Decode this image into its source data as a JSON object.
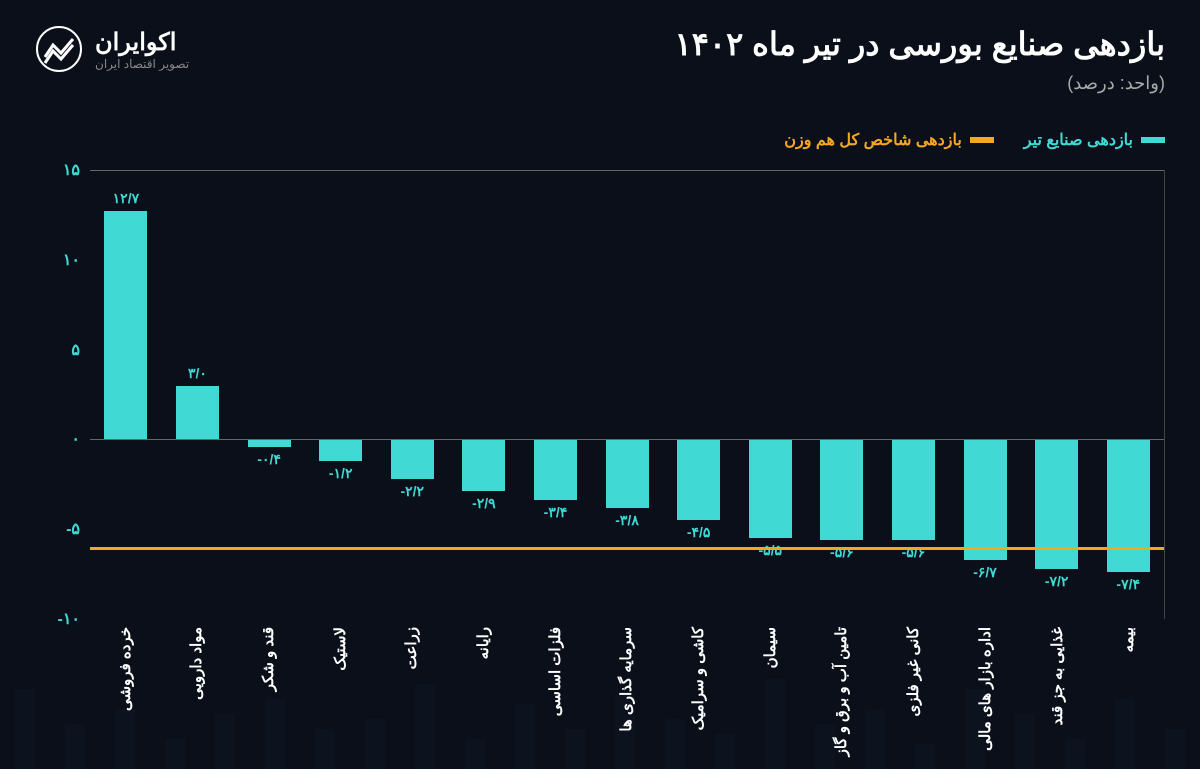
{
  "header": {
    "title": "بازدهی صنایع بورسی در تیر ماه ۱۴۰۲",
    "subtitle": "(واحد: درصد)",
    "brand": "اکوایران",
    "tagline": "تصویر اقتصاد ایران"
  },
  "legend": {
    "series": "بازدهی صنایع تیر",
    "reference": "بازدهی شاخص کل هم وزن"
  },
  "chart": {
    "type": "bar",
    "ylim": [
      -10,
      15
    ],
    "yticks": [
      -10,
      -5,
      0,
      5,
      10,
      15
    ],
    "ytick_labels": [
      "-۱۰",
      "-۵",
      "۰",
      "۵",
      "۱۰",
      "۱۵"
    ],
    "bar_color": "#40d9d4",
    "label_color": "#40d9d4",
    "reference_value": -6,
    "reference_color": "#f5a623",
    "background_color": "#0a0f1a",
    "axis_color": "#666666",
    "bar_width": 0.6,
    "categories": [
      "خرده فروشی",
      "مواد دارویی",
      "قند و شکر",
      "لاستیک",
      "زراعت",
      "رایانه",
      "فلزات اساسی",
      "سرمایه گذاری ها",
      "کاشی و سرامیک",
      "سیمان",
      "تامین آب و برق و گاز",
      "کانی غیر فلزی",
      "اداره بازار های مالی",
      "غذایی به جز قند",
      "بیمه"
    ],
    "values": [
      12.7,
      3.0,
      -0.4,
      -1.2,
      -2.2,
      -2.9,
      -3.4,
      -3.8,
      -4.5,
      -5.5,
      -5.6,
      -5.6,
      -6.7,
      -7.2,
      -7.4
    ],
    "value_labels": [
      "۱۲/۷",
      "۳/۰",
      "-۰/۴",
      "-۱/۲",
      "-۲/۲",
      "-۲/۹",
      "-۳/۴",
      "-۳/۸",
      "-۴/۵",
      "-۵/۵",
      "-۵/۶",
      "-۵/۶",
      "-۶/۷",
      "-۷/۲",
      "-۷/۴"
    ]
  }
}
